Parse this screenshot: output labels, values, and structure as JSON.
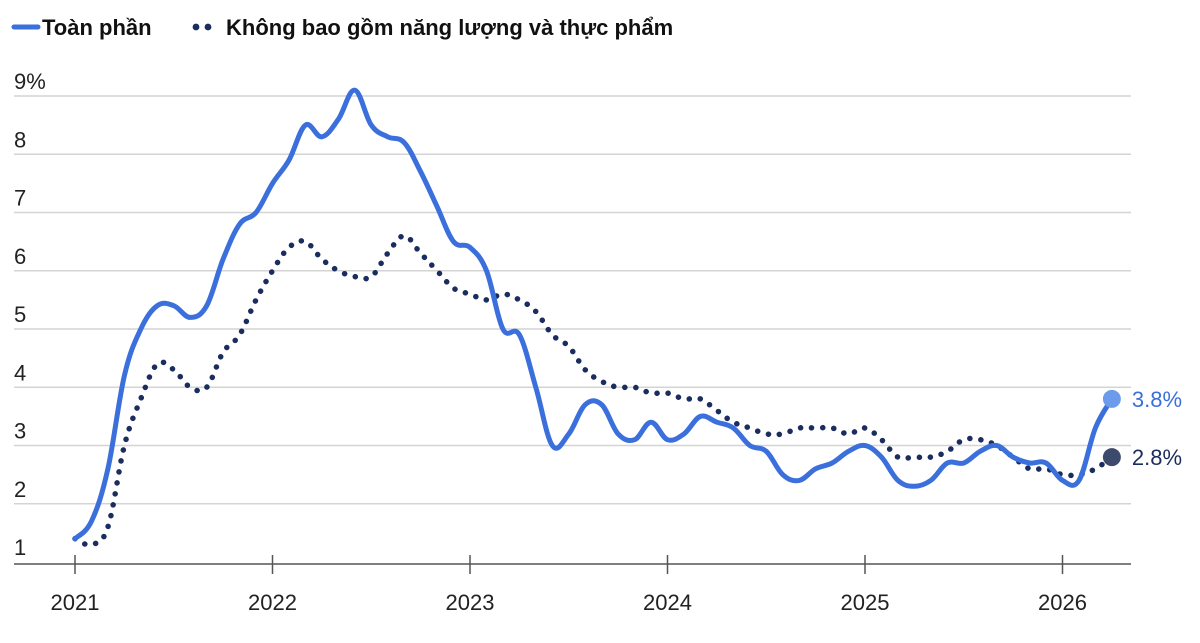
{
  "chart_data": {
    "type": "line",
    "title": "",
    "xlabel": "",
    "ylabel": "",
    "ylim": [
      1,
      9
    ],
    "y_ticks": [
      "9%",
      "8",
      "7",
      "6",
      "5",
      "4",
      "3",
      "2",
      "1"
    ],
    "x_ticks": [
      "2021",
      "2022",
      "2023",
      "2024",
      "2025",
      "2026"
    ],
    "grid": true,
    "legend_position": "top-left",
    "series": [
      {
        "name": "Toàn phần",
        "style": "solid",
        "color": "#3a6fdc",
        "end_label": "3.8%",
        "points": [
          [
            "2021-01",
            1.4
          ],
          [
            "2021-02",
            1.7
          ],
          [
            "2021-03",
            2.6
          ],
          [
            "2021-04",
            4.2
          ],
          [
            "2021-05",
            5.0
          ],
          [
            "2021-06",
            5.4
          ],
          [
            "2021-07",
            5.4
          ],
          [
            "2021-08",
            5.2
          ],
          [
            "2021-09",
            5.4
          ],
          [
            "2021-10",
            6.2
          ],
          [
            "2021-11",
            6.8
          ],
          [
            "2021-12",
            7.0
          ],
          [
            "2022-01",
            7.5
          ],
          [
            "2022-02",
            7.9
          ],
          [
            "2022-03",
            8.5
          ],
          [
            "2022-04",
            8.3
          ],
          [
            "2022-05",
            8.6
          ],
          [
            "2022-06",
            9.1
          ],
          [
            "2022-07",
            8.5
          ],
          [
            "2022-08",
            8.3
          ],
          [
            "2022-09",
            8.2
          ],
          [
            "2022-10",
            7.7
          ],
          [
            "2022-11",
            7.1
          ],
          [
            "2022-12",
            6.5
          ],
          [
            "2023-01",
            6.4
          ],
          [
            "2023-02",
            6.0
          ],
          [
            "2023-03",
            5.0
          ],
          [
            "2023-04",
            4.9
          ],
          [
            "2023-05",
            4.0
          ],
          [
            "2023-06",
            3.0
          ],
          [
            "2023-07",
            3.2
          ],
          [
            "2023-08",
            3.7
          ],
          [
            "2023-09",
            3.7
          ],
          [
            "2023-10",
            3.2
          ],
          [
            "2023-11",
            3.1
          ],
          [
            "2023-12",
            3.4
          ],
          [
            "2024-01",
            3.1
          ],
          [
            "2024-02",
            3.2
          ],
          [
            "2024-03",
            3.5
          ],
          [
            "2024-04",
            3.4
          ],
          [
            "2024-05",
            3.3
          ],
          [
            "2024-06",
            3.0
          ],
          [
            "2024-07",
            2.9
          ],
          [
            "2024-08",
            2.5
          ],
          [
            "2024-09",
            2.4
          ],
          [
            "2024-10",
            2.6
          ],
          [
            "2024-11",
            2.7
          ],
          [
            "2024-12",
            2.9
          ],
          [
            "2025-01",
            3.0
          ],
          [
            "2025-02",
            2.8
          ],
          [
            "2025-03",
            2.4
          ],
          [
            "2025-04",
            2.3
          ],
          [
            "2025-05",
            2.4
          ],
          [
            "2025-06",
            2.7
          ],
          [
            "2025-07",
            2.7
          ],
          [
            "2025-08",
            2.9
          ],
          [
            "2025-09",
            3.0
          ],
          [
            "2025-10",
            2.8
          ],
          [
            "2025-11",
            2.7
          ],
          [
            "2025-12",
            2.7
          ],
          [
            "2026-01",
            2.4
          ],
          [
            "2026-02",
            2.4
          ],
          [
            "2026-03",
            3.3
          ],
          [
            "2026-04",
            3.8
          ]
        ]
      },
      {
        "name": "Không bao gồm năng lượng và thực phẩm",
        "style": "dotted",
        "color": "#1b2d5e",
        "end_label": "2.8%",
        "points": [
          [
            "2021-01",
            1.4
          ],
          [
            "2021-02",
            1.3
          ],
          [
            "2021-03",
            1.6
          ],
          [
            "2021-04",
            3.0
          ],
          [
            "2021-05",
            3.8
          ],
          [
            "2021-06",
            4.4
          ],
          [
            "2021-07",
            4.3
          ],
          [
            "2021-08",
            4.0
          ],
          [
            "2021-09",
            4.0
          ],
          [
            "2021-10",
            4.6
          ],
          [
            "2021-11",
            4.9
          ],
          [
            "2021-12",
            5.5
          ],
          [
            "2022-01",
            6.0
          ],
          [
            "2022-02",
            6.4
          ],
          [
            "2022-03",
            6.5
          ],
          [
            "2022-04",
            6.2
          ],
          [
            "2022-05",
            6.0
          ],
          [
            "2022-06",
            5.9
          ],
          [
            "2022-07",
            5.9
          ],
          [
            "2022-08",
            6.3
          ],
          [
            "2022-09",
            6.6
          ],
          [
            "2022-10",
            6.3
          ],
          [
            "2022-11",
            6.0
          ],
          [
            "2022-12",
            5.7
          ],
          [
            "2023-01",
            5.6
          ],
          [
            "2023-02",
            5.5
          ],
          [
            "2023-03",
            5.6
          ],
          [
            "2023-04",
            5.5
          ],
          [
            "2023-05",
            5.3
          ],
          [
            "2023-06",
            4.9
          ],
          [
            "2023-07",
            4.7
          ],
          [
            "2023-08",
            4.3
          ],
          [
            "2023-09",
            4.1
          ],
          [
            "2023-10",
            4.0
          ],
          [
            "2023-11",
            4.0
          ],
          [
            "2023-12",
            3.9
          ],
          [
            "2024-01",
            3.9
          ],
          [
            "2024-02",
            3.8
          ],
          [
            "2024-03",
            3.8
          ],
          [
            "2024-04",
            3.6
          ],
          [
            "2024-05",
            3.4
          ],
          [
            "2024-06",
            3.3
          ],
          [
            "2024-07",
            3.2
          ],
          [
            "2024-08",
            3.2
          ],
          [
            "2024-09",
            3.3
          ],
          [
            "2024-10",
            3.3
          ],
          [
            "2024-11",
            3.3
          ],
          [
            "2024-12",
            3.2
          ],
          [
            "2025-01",
            3.3
          ],
          [
            "2025-02",
            3.1
          ],
          [
            "2025-03",
            2.8
          ],
          [
            "2025-04",
            2.8
          ],
          [
            "2025-05",
            2.8
          ],
          [
            "2025-06",
            2.9
          ],
          [
            "2025-07",
            3.1
          ],
          [
            "2025-08",
            3.1
          ],
          [
            "2025-09",
            3.0
          ],
          [
            "2025-10",
            2.8
          ],
          [
            "2025-11",
            2.6
          ],
          [
            "2025-12",
            2.6
          ],
          [
            "2026-01",
            2.5
          ],
          [
            "2026-02",
            2.5
          ],
          [
            "2026-03",
            2.6
          ],
          [
            "2026-04",
            2.8
          ]
        ]
      }
    ]
  },
  "colors": {
    "grid": "#d4d4d4",
    "axis": "#555555",
    "text": "#222222",
    "label_overall": "#3a6fdc",
    "label_core": "#1b2d5e",
    "dot_overall": "#6b9bea",
    "dot_core": "#3c4a6b"
  }
}
